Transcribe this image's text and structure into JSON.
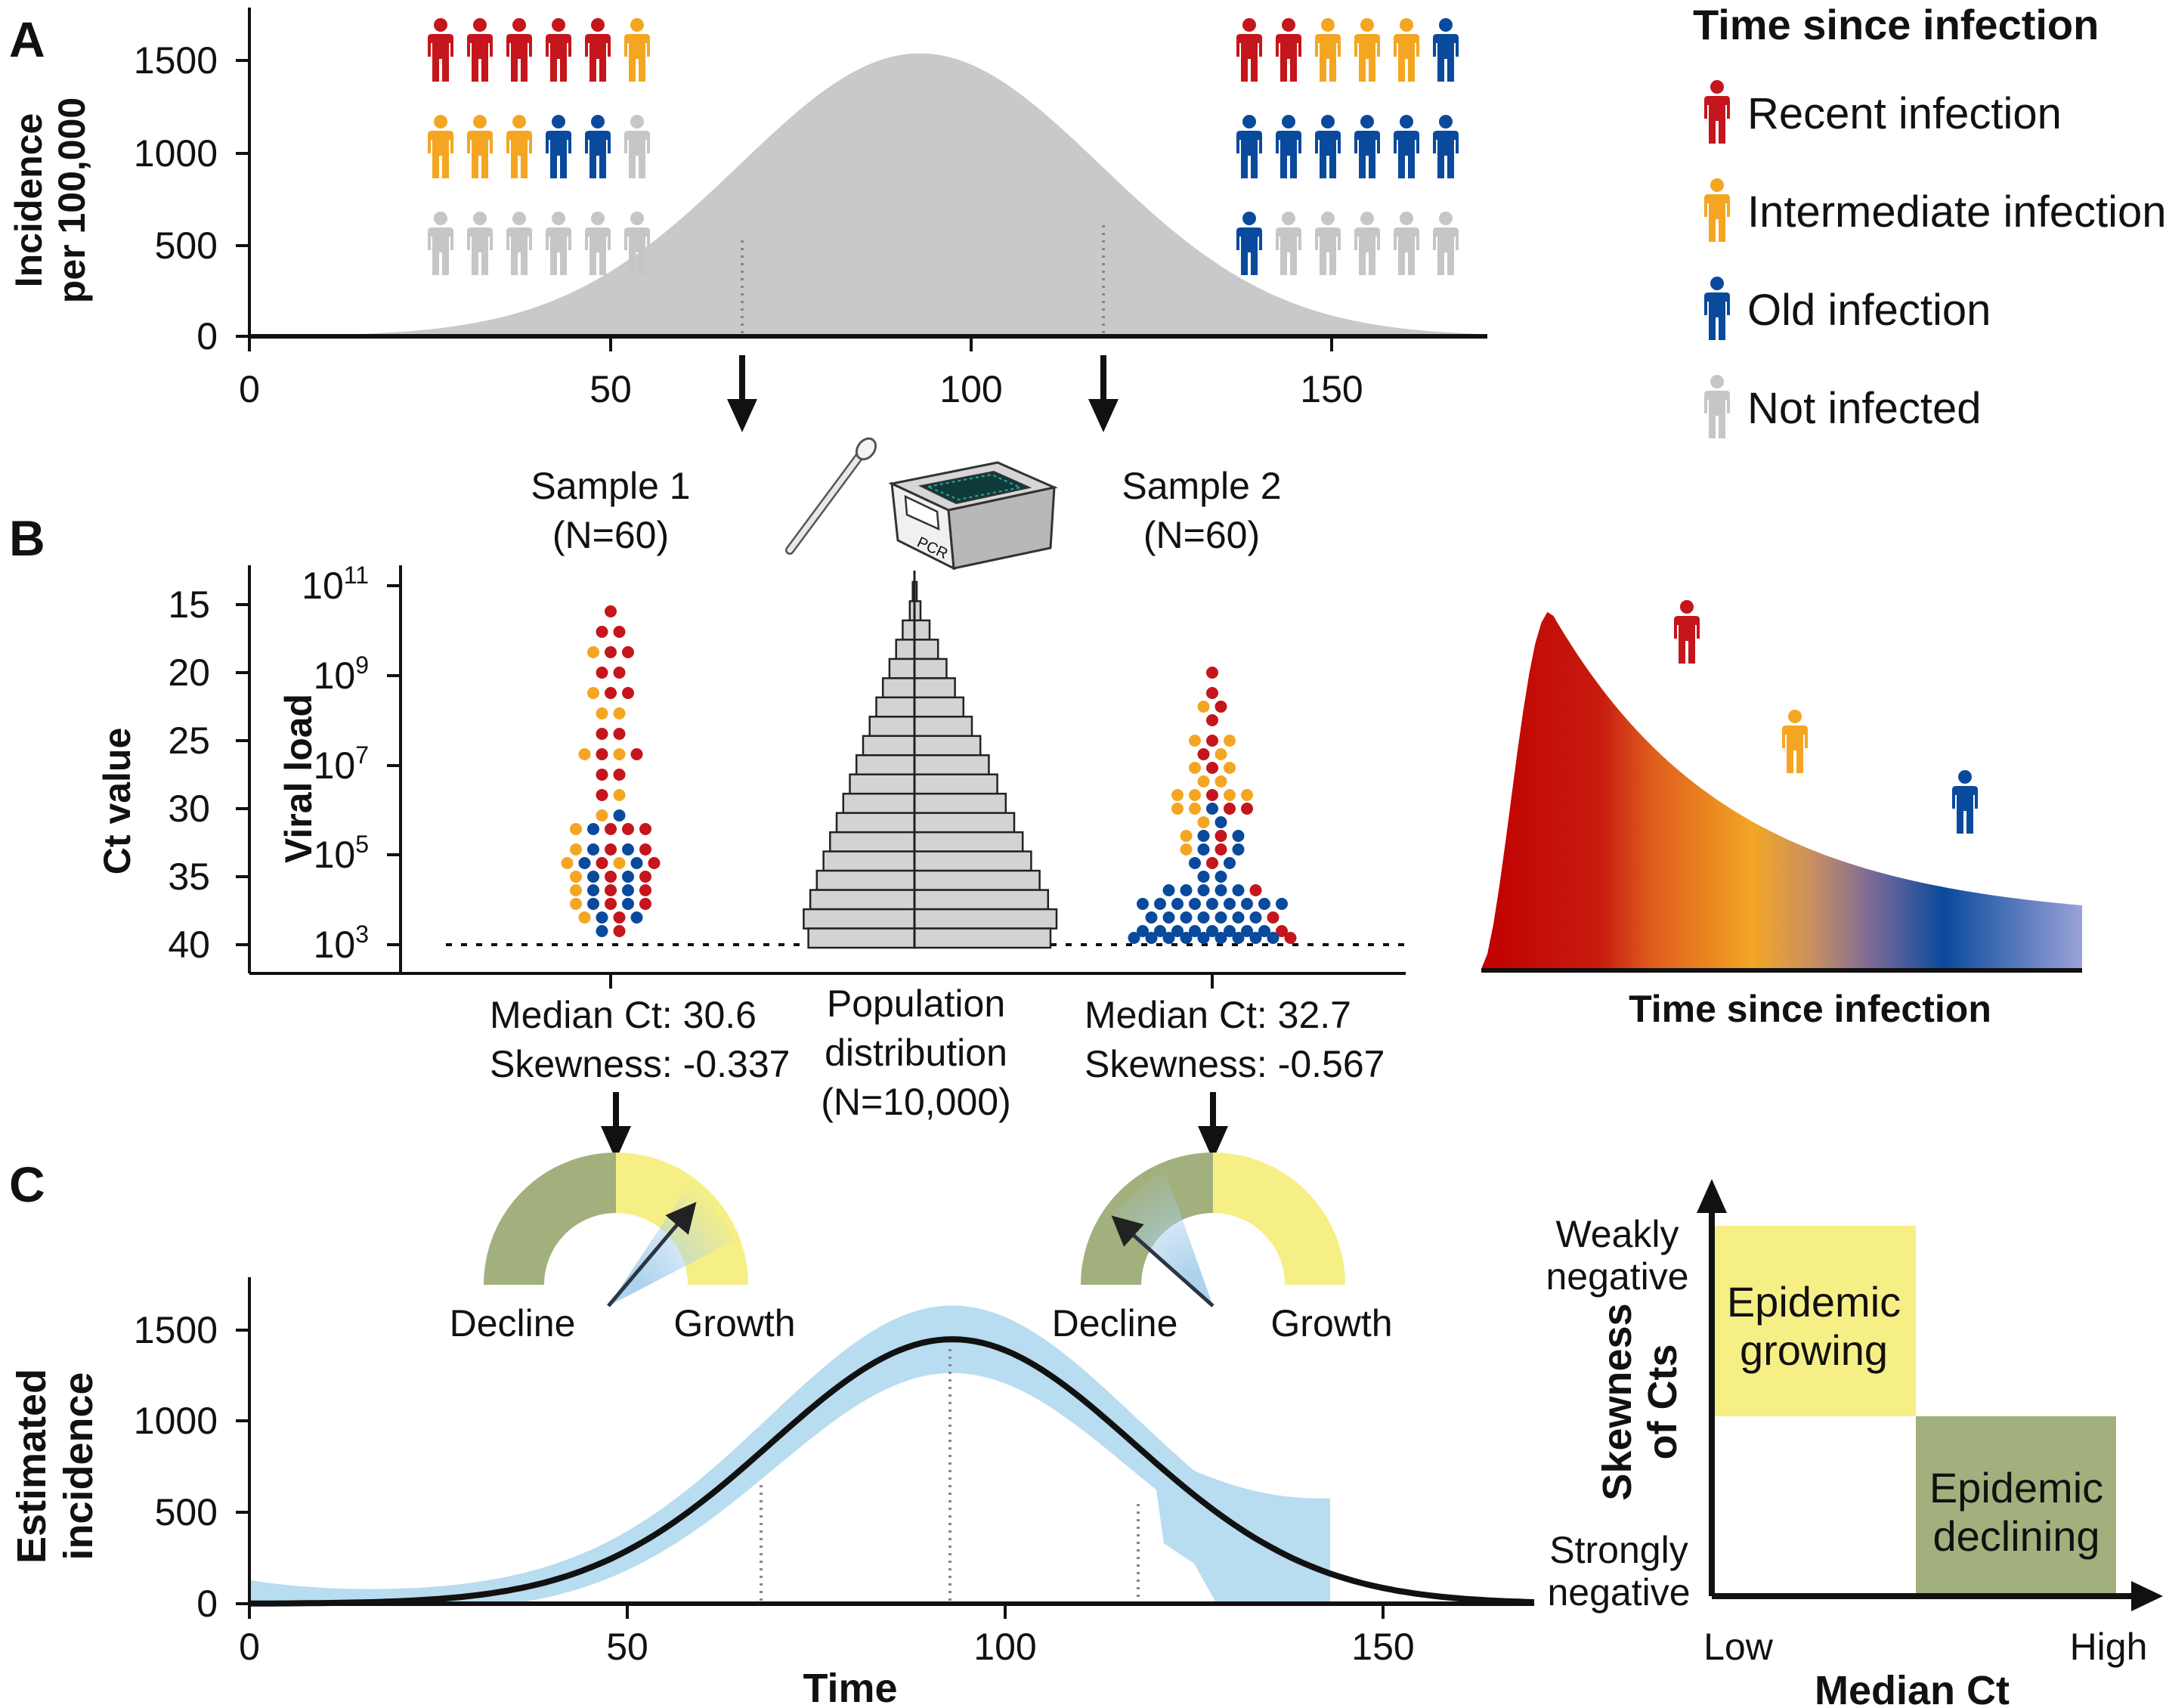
{
  "panels": {
    "a": "A",
    "b": "B",
    "c": "C"
  },
  "colors": {
    "recent": "#c4161c",
    "intermediate": "#f4a623",
    "old": "#0a4a9c",
    "not_infected": "#c6c6c6",
    "curve_fill": "#c8c9cb",
    "band": "#b8dcf0",
    "green": "#a2b07d",
    "yellow": "#f6ef86"
  },
  "panel_a": {
    "ylabel_line1": "Incidence",
    "ylabel_line2": "per 100,000",
    "y_ticks": [
      "1500",
      "1000",
      "500",
      "0"
    ],
    "x_ticks": [
      "0",
      "50",
      "100",
      "150"
    ],
    "people_left": [
      [
        "recent",
        "recent",
        "recent",
        "recent",
        "recent",
        "intermediate"
      ],
      [
        "intermediate",
        "intermediate",
        "intermediate",
        "old",
        "old",
        "not_infected"
      ],
      [
        "not_infected",
        "not_infected",
        "not_infected",
        "not_infected",
        "not_infected",
        "not_infected"
      ]
    ],
    "people_right": [
      [
        "recent",
        "recent",
        "intermediate",
        "intermediate",
        "intermediate",
        "old"
      ],
      [
        "old",
        "old",
        "old",
        "old",
        "old",
        "old"
      ],
      [
        "old",
        "not_infected",
        "not_infected",
        "not_infected",
        "not_infected",
        "not_infected"
      ]
    ]
  },
  "legend": {
    "title": "Time since infection",
    "items": [
      {
        "key": "recent",
        "label": "Recent infection"
      },
      {
        "key": "intermediate",
        "label": "Intermediate infection"
      },
      {
        "key": "old",
        "label": "Old infection"
      },
      {
        "key": "not_infected",
        "label": "Not infected"
      }
    ]
  },
  "panel_b": {
    "sample1_line1": "Sample 1",
    "sample1_line2": "(N=60)",
    "sample2_line1": "Sample 2",
    "sample2_line2": "(N=60)",
    "pcr_label": "PCR",
    "ct_label": "Ct value",
    "viral_label": "Viral load",
    "ct_ticks": [
      "15",
      "20",
      "25",
      "30",
      "35",
      "40"
    ],
    "vl_base": "10",
    "vl_exponents": [
      "11",
      "9",
      "7",
      "5",
      "3"
    ],
    "s1_line1": "Median Ct: 30.6",
    "s1_line2": "Skewness: -0.337",
    "pop_line1": "Population",
    "pop_line2": "distribution",
    "pop_line3": "(N=10,000)",
    "s2_line1": "Median Ct: 32.7",
    "s2_line2": "Skewness: -0.567",
    "tsi_label": "Time since infection"
  },
  "panel_c": {
    "gauge_decline": "Decline",
    "gauge_growth": "Growth",
    "ylabel_line1": "Estimated",
    "ylabel_line2": "incidence",
    "xlabel": "Time",
    "y_ticks": [
      "1500",
      "1000",
      "500",
      "0"
    ],
    "x_ticks": [
      "0",
      "50",
      "100",
      "150"
    ],
    "quad_ylabel_line1": "Skewness",
    "quad_ylabel_line2": "of Cts",
    "quad_xlabel": "Median Ct",
    "quad_y_top_line1": "Weakly",
    "quad_y_top_line2": "negative",
    "quad_y_bottom_line1": "Strongly",
    "quad_y_bottom_line2": "negative",
    "quad_x_low": "Low",
    "quad_x_high": "High",
    "growing_line1": "Epidemic",
    "growing_line2": "growing",
    "declining_line1": "Epidemic",
    "declining_line2": "declining"
  }
}
